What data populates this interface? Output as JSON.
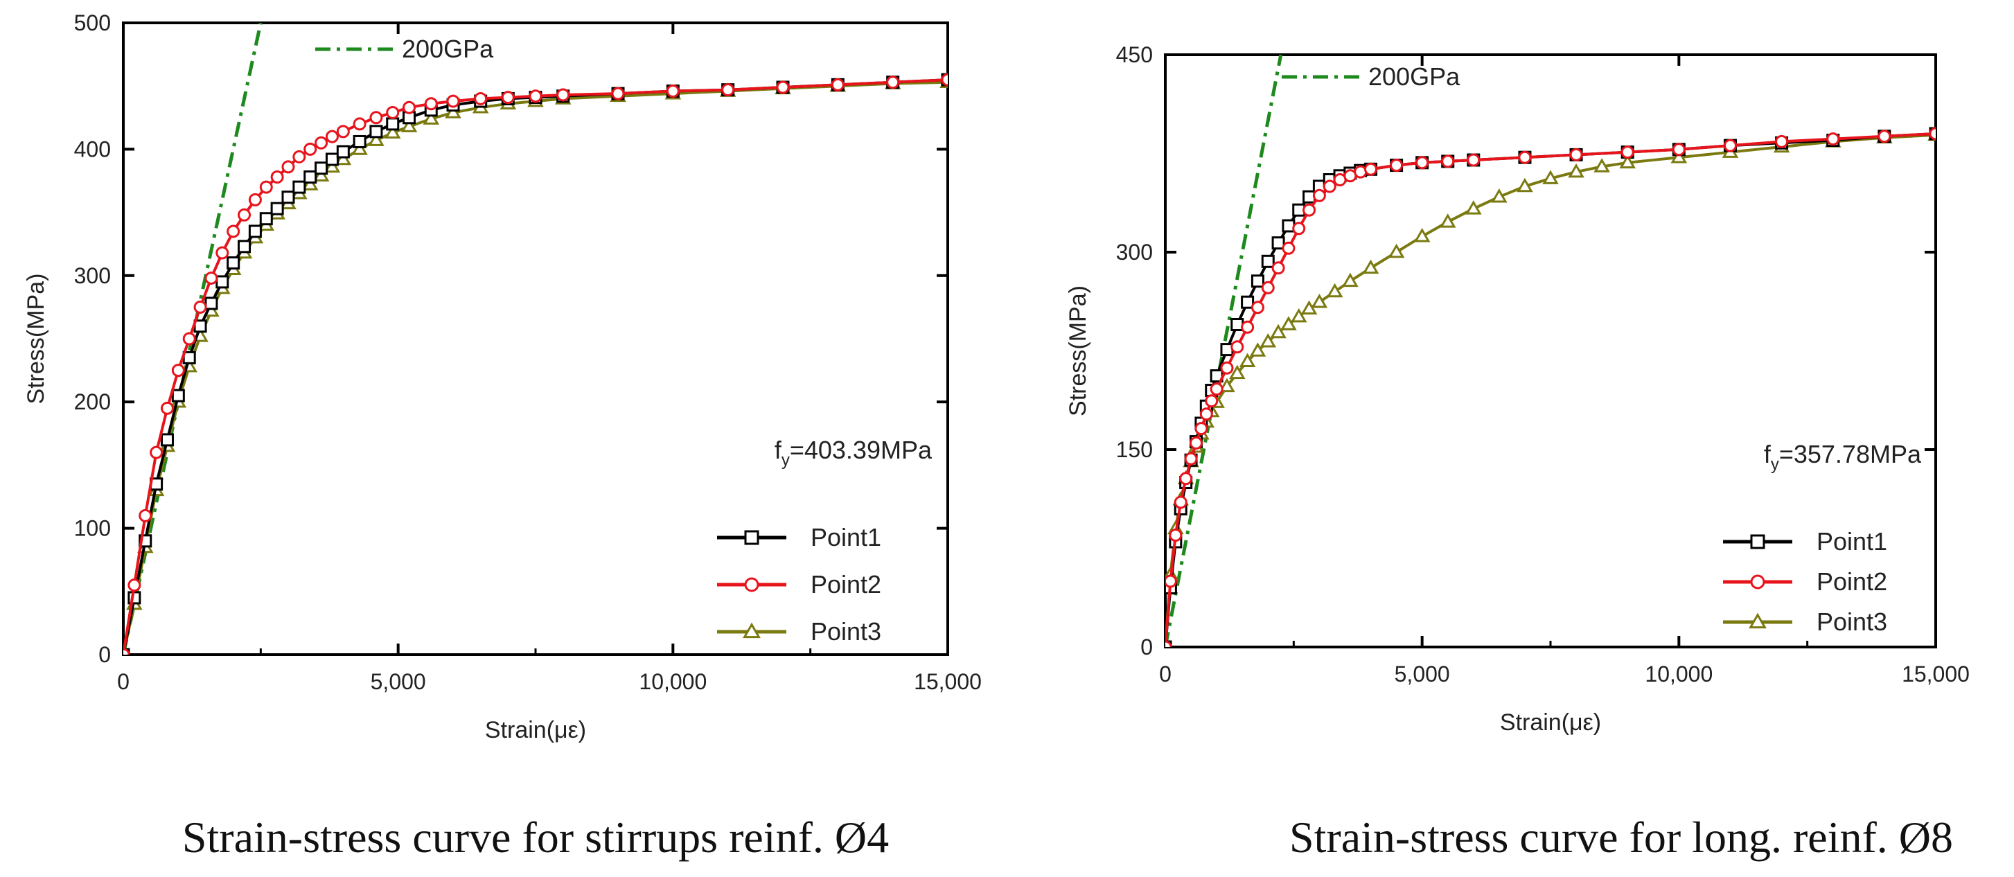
{
  "chart_data": [
    {
      "type": "line",
      "caption": "Strain-stress curve for stirrups reinf. Ø4",
      "xlabel": "Strain(με)",
      "ylabel": "Stress(MPa)",
      "xlim": [
        0,
        15000
      ],
      "ylim": [
        0,
        500
      ],
      "x_ticks": [
        0,
        5000,
        10000,
        15000
      ],
      "x_tick_labels": [
        "0",
        "5,000",
        "10,000",
        "15,000"
      ],
      "y_ticks": [
        0,
        100,
        200,
        300,
        400,
        500
      ],
      "y_tick_labels": [
        "0",
        "100",
        "200",
        "300",
        "400",
        "500"
      ],
      "reference_line": {
        "label": "200GPa",
        "modulus_mpa_per_microstrain": 0.2,
        "color": "#1e8a1e"
      },
      "annotation": {
        "symbol": "f",
        "subscript": "y",
        "value": "=403.39MPa",
        "yield_stress": 403.39
      },
      "legend_position": "bottom-right",
      "series": [
        {
          "name": "Point1",
          "color": "#000000",
          "marker": "square",
          "fill": "none",
          "x": [
            0,
            200,
            400,
            600,
            800,
            1000,
            1200,
            1400,
            1600,
            1800,
            2000,
            2200,
            2400,
            2600,
            2800,
            3000,
            3200,
            3400,
            3600,
            3800,
            4000,
            4300,
            4600,
            4900,
            5200,
            5600,
            6000,
            6500,
            7000,
            7500,
            8000,
            9000,
            10000,
            11000,
            12000,
            13000,
            14000,
            15000
          ],
          "y": [
            0,
            45,
            90,
            135,
            170,
            205,
            235,
            260,
            278,
            295,
            310,
            323,
            335,
            345,
            353,
            362,
            370,
            378,
            385,
            392,
            398,
            406,
            414,
            420,
            425,
            431,
            435,
            438,
            440,
            441,
            442,
            444,
            446,
            447,
            449,
            451,
            453,
            455
          ]
        },
        {
          "name": "Point2",
          "color": "#e8141c",
          "marker": "circle",
          "fill": "none",
          "x": [
            0,
            200,
            400,
            600,
            800,
            1000,
            1200,
            1400,
            1600,
            1800,
            2000,
            2200,
            2400,
            2600,
            2800,
            3000,
            3200,
            3400,
            3600,
            3800,
            4000,
            4300,
            4600,
            4900,
            5200,
            5600,
            6000,
            6500,
            7000,
            7500,
            8000,
            9000,
            10000,
            11000,
            12000,
            13000,
            14000,
            15000
          ],
          "y": [
            0,
            55,
            110,
            160,
            195,
            225,
            250,
            275,
            298,
            318,
            335,
            348,
            360,
            370,
            378,
            386,
            394,
            400,
            405,
            410,
            414,
            420,
            425,
            429,
            433,
            436,
            438,
            440,
            441,
            442,
            443,
            444,
            446,
            447,
            449,
            451,
            453,
            455
          ]
        },
        {
          "name": "Point3",
          "color": "#7a7a10",
          "marker": "triangle",
          "fill": "none",
          "x": [
            0,
            200,
            400,
            600,
            800,
            1000,
            1200,
            1400,
            1600,
            1800,
            2000,
            2200,
            2400,
            2600,
            2800,
            3000,
            3200,
            3400,
            3600,
            3800,
            4000,
            4300,
            4600,
            4900,
            5200,
            5600,
            6000,
            6500,
            7000,
            7500,
            8000,
            9000,
            10000,
            11000,
            12000,
            13000,
            14000,
            15000
          ],
          "y": [
            0,
            40,
            85,
            130,
            165,
            200,
            228,
            252,
            272,
            290,
            305,
            318,
            330,
            340,
            349,
            357,
            365,
            372,
            379,
            386,
            392,
            400,
            407,
            413,
            418,
            424,
            429,
            433,
            436,
            438,
            440,
            442,
            444,
            446,
            448,
            450,
            452,
            453
          ]
        }
      ]
    },
    {
      "type": "line",
      "caption": "Strain-stress curve for long. reinf. Ø8",
      "xlabel": "Strain(με)",
      "ylabel": "Stress(MPa)",
      "xlim": [
        0,
        15000
      ],
      "ylim": [
        0,
        450
      ],
      "x_ticks": [
        0,
        5000,
        10000,
        15000
      ],
      "x_tick_labels": [
        "0",
        "5,000",
        "10,000",
        "15,000"
      ],
      "y_ticks": [
        0,
        150,
        300,
        450
      ],
      "y_tick_labels": [
        "0",
        "150",
        "300",
        "450"
      ],
      "reference_line": {
        "label": "200GPa",
        "modulus_mpa_per_microstrain": 0.2,
        "color": "#1e8a1e"
      },
      "annotation": {
        "symbol": "f",
        "subscript": "y",
        "value": "=357.78MPa",
        "yield_stress": 357.78
      },
      "legend_position": "bottom-right",
      "series": [
        {
          "name": "Point1",
          "color": "#000000",
          "marker": "square",
          "fill": "none",
          "x": [
            0,
            100,
            200,
            300,
            400,
            500,
            600,
            700,
            800,
            900,
            1000,
            1200,
            1400,
            1600,
            1800,
            2000,
            2200,
            2400,
            2600,
            2800,
            3000,
            3200,
            3400,
            3600,
            3800,
            4000,
            4500,
            5000,
            5500,
            6000,
            7000,
            8000,
            9000,
            10000,
            11000,
            12000,
            13000,
            14000,
            15000
          ],
          "y": [
            0,
            45,
            80,
            105,
            125,
            142,
            156,
            170,
            183,
            195,
            206,
            226,
            245,
            262,
            278,
            293,
            307,
            320,
            332,
            342,
            350,
            355,
            358,
            360,
            362,
            363,
            366,
            368,
            369,
            370,
            372,
            374,
            376,
            378,
            381,
            383,
            385,
            388,
            390
          ]
        },
        {
          "name": "Point2",
          "color": "#e8141c",
          "marker": "circle",
          "fill": "none",
          "x": [
            0,
            100,
            200,
            300,
            400,
            500,
            600,
            700,
            800,
            900,
            1000,
            1200,
            1400,
            1600,
            1800,
            2000,
            2200,
            2400,
            2600,
            2800,
            3000,
            3200,
            3400,
            3600,
            3800,
            4000,
            4500,
            5000,
            5500,
            6000,
            7000,
            8000,
            9000,
            10000,
            11000,
            12000,
            13000,
            14000,
            15000
          ],
          "y": [
            0,
            50,
            85,
            110,
            128,
            143,
            155,
            166,
            177,
            187,
            196,
            212,
            228,
            243,
            258,
            273,
            288,
            303,
            318,
            332,
            343,
            350,
            355,
            358,
            361,
            363,
            366,
            368,
            369,
            370,
            372,
            374,
            376,
            378,
            381,
            384,
            386,
            388,
            390
          ]
        },
        {
          "name": "Point3",
          "color": "#7a7a10",
          "marker": "triangle",
          "fill": "none",
          "x": [
            0,
            100,
            200,
            300,
            400,
            500,
            600,
            700,
            800,
            900,
            1000,
            1200,
            1400,
            1600,
            1800,
            2000,
            2200,
            2400,
            2600,
            2800,
            3000,
            3300,
            3600,
            4000,
            4500,
            5000,
            5500,
            6000,
            6500,
            7000,
            7500,
            8000,
            8500,
            9000,
            10000,
            11000,
            12000,
            13000,
            14000,
            15000
          ],
          "y": [
            0,
            55,
            90,
            112,
            128,
            141,
            152,
            162,
            171,
            179,
            186,
            198,
            208,
            217,
            225,
            232,
            239,
            245,
            251,
            257,
            262,
            270,
            278,
            288,
            300,
            312,
            323,
            333,
            342,
            350,
            356,
            361,
            365,
            368,
            372,
            376,
            380,
            384,
            387,
            389
          ]
        }
      ]
    }
  ]
}
